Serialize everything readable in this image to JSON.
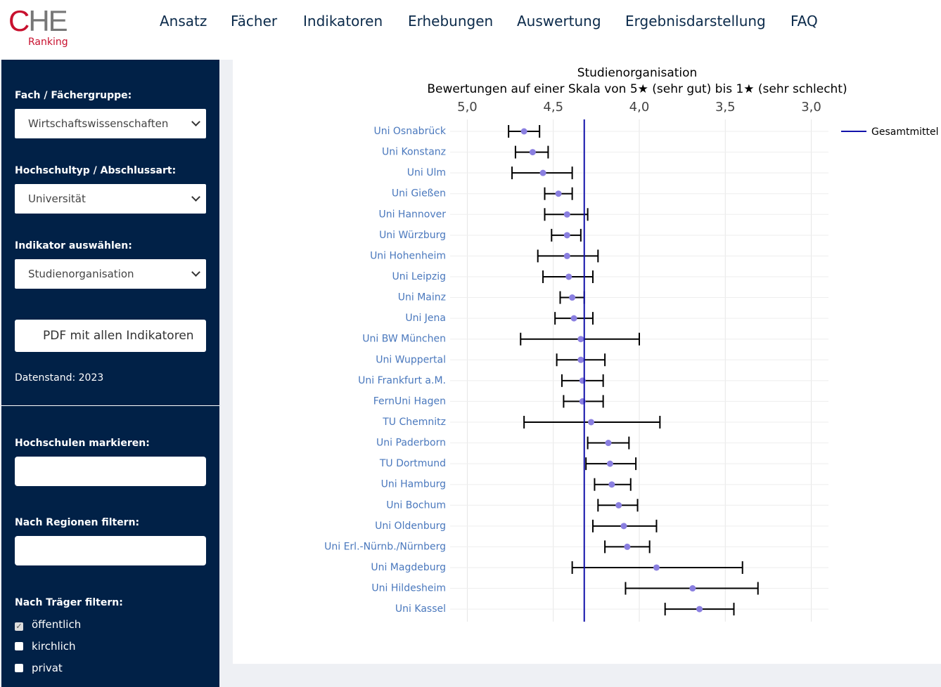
{
  "logo": {
    "title": "CHE",
    "subtitle": "Ranking"
  },
  "nav": [
    "Ansatz",
    "Fächer",
    "Indikatoren",
    "Erhebungen",
    "Auswertung",
    "Ergebnisdarstellung",
    "FAQ"
  ],
  "sidebar": {
    "selects": [
      {
        "label": "Fach / Fächergruppe:",
        "value": "Wirtschaftswissenschaften"
      },
      {
        "label": "Hochschultyp / Abschlussart:",
        "value": "Universität"
      },
      {
        "label": "Indikator auswählen:",
        "value": "Studienorganisation"
      }
    ],
    "button": "PDF mit allen Indikatoren",
    "data_date": "Datenstand: 2023",
    "inputs": [
      "Hochschulen markieren:",
      "Nach Regionen filtern:"
    ],
    "checkbox_title": "Nach Träger filtern:",
    "checkboxes": [
      {
        "label": "öffentlich",
        "checked": true
      },
      {
        "label": "kirchlich",
        "checked": false
      },
      {
        "label": "privat",
        "checked": false
      }
    ]
  },
  "chart_data": {
    "type": "errorbar",
    "title": "Studienorganisation",
    "subtitle": "Bewertungen auf einer Skala von 5★ (sehr gut) bis 1★ (sehr schlecht)",
    "categories": [
      "Uni Osnabrück",
      "Uni Konstanz",
      "Uni Ulm",
      "Uni Gießen",
      "Uni Hannover",
      "Uni Würzburg",
      "Uni Hohenheim",
      "Uni Leipzig",
      "Uni Mainz",
      "Uni Jena",
      "Uni BW München",
      "Uni Wuppertal",
      "Uni Frankfurt a.M.",
      "FernUni Hagen",
      "TU Chemnitz",
      "Uni Paderborn",
      "TU Dortmund",
      "Uni Hamburg",
      "Uni Bochum",
      "Uni Oldenburg",
      "Uni Erl.-Nürnb./Nürnberg",
      "Uni Magdeburg",
      "Uni Hildesheim",
      "Uni Kassel"
    ],
    "values": [
      4.67,
      4.62,
      4.56,
      4.47,
      4.42,
      4.42,
      4.42,
      4.41,
      4.39,
      4.38,
      4.34,
      4.34,
      4.33,
      4.33,
      4.28,
      4.18,
      4.17,
      4.16,
      4.12,
      4.09,
      4.07,
      3.9,
      3.69,
      3.65
    ],
    "upper": [
      4.76,
      4.72,
      4.74,
      4.55,
      4.55,
      4.51,
      4.59,
      4.56,
      4.46,
      4.49,
      4.69,
      4.48,
      4.45,
      4.44,
      4.67,
      4.3,
      4.31,
      4.26,
      4.24,
      4.27,
      4.2,
      4.39,
      4.08,
      3.85
    ],
    "lower": [
      4.58,
      4.53,
      4.39,
      4.39,
      4.3,
      4.34,
      4.24,
      4.27,
      4.32,
      4.27,
      4,
      4.2,
      4.21,
      4.21,
      3.88,
      4.06,
      4.02,
      4.05,
      4.01,
      3.9,
      3.94,
      3.4,
      3.31,
      3.45
    ],
    "color": "#8a7fe0",
    "error_color": "#000000",
    "mean": {
      "name": "Gesamtmittel",
      "value": 4.32,
      "color": "#1111aa"
    },
    "xlim": [
      5.1,
      2.9
    ],
    "xticks": [
      {
        "value": 5,
        "label": "5,0"
      },
      {
        "value": 4.5,
        "label": "4,5"
      },
      {
        "value": 4,
        "label": "4,0"
      },
      {
        "value": 3.5,
        "label": "3,5"
      },
      {
        "value": 3,
        "label": "3,0"
      }
    ],
    "grid": true
  }
}
